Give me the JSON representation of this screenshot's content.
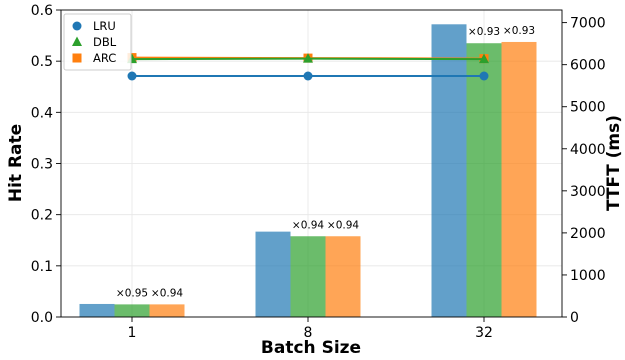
{
  "chart_data": {
    "type": "bar",
    "xlabel": "Batch Size",
    "ylabel_left": "Hit Rate",
    "ylabel_right": "TTFT (ms)",
    "categories": [
      "1",
      "8",
      "32"
    ],
    "ylim_left": [
      0,
      0.6
    ],
    "yticks_left": [
      "0.0",
      "0.1",
      "0.2",
      "0.3",
      "0.4",
      "0.5",
      "0.6"
    ],
    "ylim_right": [
      0,
      7300
    ],
    "yticks_right": [
      "0",
      "1000",
      "2000",
      "3000",
      "4000",
      "5000",
      "6000",
      "7000"
    ],
    "grid": true,
    "legend_position": "top-left",
    "series": [
      {
        "name": "LRU",
        "color": "#1f77b4",
        "marker": "circle",
        "hit_rate": [
          0.471,
          0.471,
          0.471
        ],
        "ttft_ms": [
          310,
          2030,
          6960
        ],
        "ttft_labels": [
          "",
          "",
          ""
        ]
      },
      {
        "name": "DBL",
        "color": "#2ca02c",
        "marker": "triangle",
        "hit_rate": [
          0.504,
          0.505,
          0.504
        ],
        "ttft_ms": [
          300,
          1920,
          6510
        ],
        "ttft_labels": [
          "×0.95",
          "×0.94",
          "×0.93"
        ]
      },
      {
        "name": "ARC",
        "color": "#ff7f0e",
        "marker": "square",
        "hit_rate": [
          0.507,
          0.506,
          0.505
        ],
        "ttft_ms": [
          300,
          1920,
          6540
        ],
        "ttft_labels": [
          "×0.94",
          "×0.94",
          "×0.93"
        ]
      }
    ]
  }
}
